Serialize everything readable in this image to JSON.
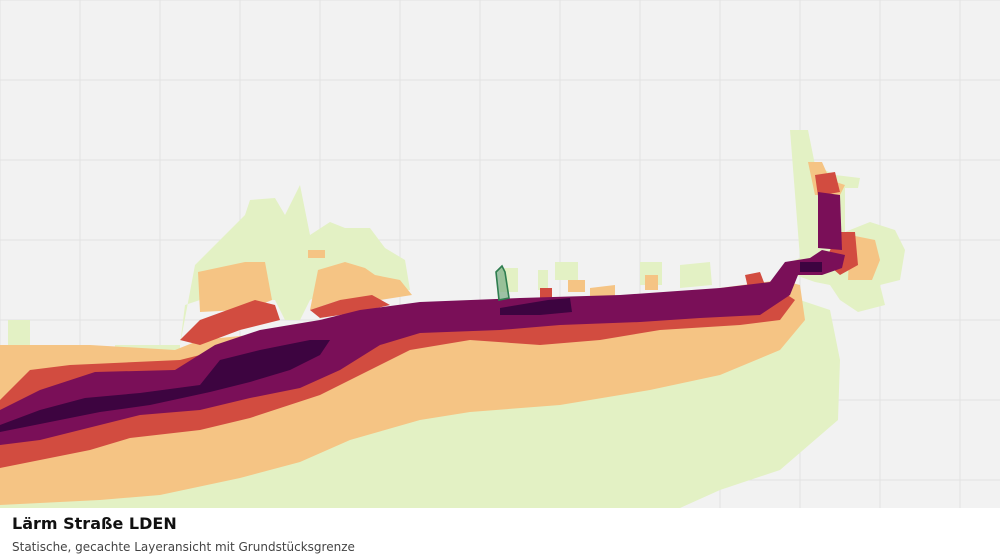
{
  "map": {
    "layer_title": "Lärm Straße LDEN",
    "layer_subtitle": "Statische, gecachte Layeransicht mit Grundstücksgrenze",
    "noise_bands": [
      {
        "name": "band-1",
        "color": "#e3f1c4"
      },
      {
        "name": "band-2",
        "color": "#f5c484"
      },
      {
        "name": "band-3",
        "color": "#d24c40"
      },
      {
        "name": "band-4",
        "color": "#7a0f58"
      },
      {
        "name": "band-5",
        "color": "#3d0440"
      }
    ],
    "parcel_outline_color": "#2e7d4f",
    "grid_color": "#e2e2e2",
    "background_color": "#f2f2f2"
  }
}
